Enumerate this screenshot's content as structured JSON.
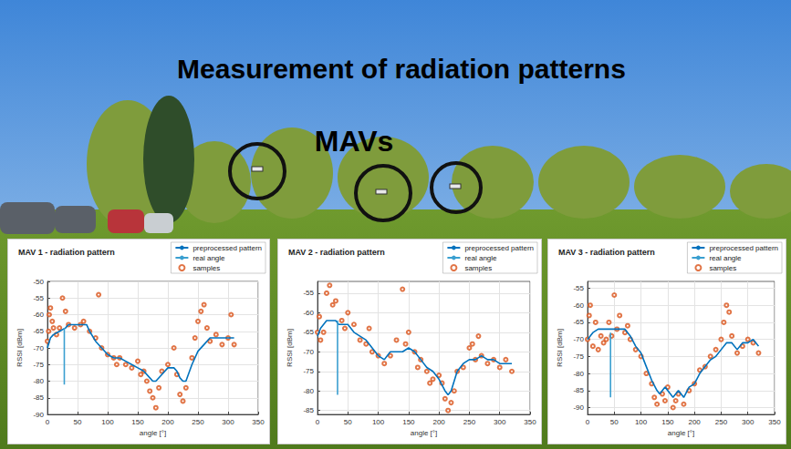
{
  "title": "Measurement of radiation patterns",
  "annotation": "MAVs",
  "chart_data": [
    {
      "type": "line",
      "title": "MAV 1 - radiation pattern",
      "x_label": "angle [°]",
      "y_label": "RSSI [dBm]",
      "xlim": [
        0,
        350
      ],
      "xticks": [
        0,
        50,
        100,
        150,
        200,
        250,
        300,
        350
      ],
      "ylim": [
        -90,
        -50
      ],
      "yticks": [
        -90,
        -85,
        -80,
        -75,
        -70,
        -65,
        -60,
        -55,
        -50
      ],
      "grid": true,
      "legend": "top-right",
      "series": [
        {
          "name": "preprocessed pattern",
          "type": "line",
          "color": "#0072bd",
          "line_style": "solid",
          "x": [
            0,
            5,
            10,
            20,
            30,
            35,
            50,
            65,
            70,
            80,
            90,
            100,
            110,
            120,
            130,
            140,
            150,
            160,
            170,
            175,
            180,
            190,
            200,
            210,
            215,
            220,
            225,
            230,
            240,
            250,
            260,
            270,
            280,
            290,
            300,
            310
          ],
          "values": [
            -70,
            -67,
            -66,
            -65,
            -64,
            -63,
            -63,
            -63,
            -65,
            -68,
            -70,
            -72,
            -73,
            -73,
            -74,
            -75,
            -76,
            -77,
            -79,
            -80,
            -80,
            -78,
            -76,
            -76,
            -77,
            -79,
            -80,
            -80,
            -75,
            -71,
            -69,
            -67,
            -67,
            -67,
            -67,
            -67
          ]
        },
        {
          "name": "real angle",
          "type": "line",
          "color": "#3a9fd0",
          "line_style": "solid",
          "x": [
            28,
            28
          ],
          "values": [
            -81,
            -64
          ]
        },
        {
          "name": "samples",
          "type": "scatter",
          "color": "#d95319",
          "marker": "circle",
          "x": [
            0,
            2,
            3,
            5,
            8,
            10,
            15,
            20,
            25,
            30,
            35,
            45,
            55,
            60,
            70,
            80,
            85,
            90,
            100,
            110,
            115,
            120,
            130,
            140,
            150,
            155,
            160,
            165,
            170,
            175,
            180,
            185,
            190,
            200,
            210,
            215,
            220,
            225,
            230,
            240,
            245,
            250,
            255,
            260,
            265,
            270,
            280,
            290,
            300,
            305,
            310
          ],
          "values": [
            -68,
            -65,
            -60,
            -58,
            -62,
            -64,
            -66,
            -64,
            -55,
            -59,
            -63,
            -64,
            -63,
            -62,
            -65,
            -67,
            -54,
            -70,
            -72,
            -73,
            -75,
            -73,
            -75,
            -76,
            -74,
            -78,
            -77,
            -80,
            -83,
            -85,
            -88,
            -82,
            -77,
            -75,
            -70,
            -78,
            -84,
            -86,
            -82,
            -73,
            -67,
            -62,
            -59,
            -57,
            -64,
            -68,
            -66,
            -69,
            -67,
            -60,
            -69
          ]
        }
      ]
    },
    {
      "type": "line",
      "title": "MAV 2 - radiation pattern",
      "x_label": "angle [°]",
      "y_label": "RSSI [dBm]",
      "xlim": [
        0,
        350
      ],
      "xticks": [
        0,
        50,
        100,
        150,
        200,
        250,
        300,
        350
      ],
      "ylim": [
        -86,
        -52
      ],
      "yticks": [
        -85,
        -80,
        -75,
        -70,
        -65,
        -60,
        -55
      ],
      "grid": true,
      "legend": "top-right",
      "series": [
        {
          "name": "preprocessed pattern",
          "type": "line",
          "color": "#0072bd",
          "line_style": "solid",
          "x": [
            0,
            5,
            10,
            15,
            30,
            35,
            50,
            60,
            70,
            80,
            90,
            100,
            110,
            115,
            120,
            130,
            140,
            150,
            160,
            170,
            180,
            190,
            200,
            210,
            215,
            220,
            230,
            240,
            250,
            260,
            270,
            280,
            290,
            300,
            310,
            320
          ],
          "values": [
            -66,
            -64,
            -63,
            -62,
            -62,
            -63,
            -63,
            -65,
            -66,
            -67,
            -69,
            -71,
            -72,
            -71,
            -70,
            -70,
            -70,
            -69,
            -70,
            -72,
            -74,
            -75,
            -77,
            -80,
            -81,
            -80,
            -75,
            -73,
            -72,
            -72,
            -71,
            -72,
            -72,
            -73,
            -73,
            -73
          ]
        },
        {
          "name": "real angle",
          "type": "line",
          "color": "#3a9fd0",
          "line_style": "solid",
          "x": [
            33,
            33
          ],
          "values": [
            -81,
            -62
          ]
        },
        {
          "name": "samples",
          "type": "scatter",
          "color": "#d95319",
          "marker": "circle",
          "x": [
            0,
            3,
            5,
            10,
            15,
            20,
            25,
            30,
            40,
            45,
            50,
            60,
            70,
            80,
            85,
            90,
            100,
            110,
            120,
            130,
            140,
            145,
            150,
            160,
            165,
            170,
            180,
            185,
            190,
            200,
            205,
            210,
            215,
            220,
            225,
            230,
            240,
            250,
            255,
            260,
            265,
            270,
            280,
            290,
            300,
            310,
            320
          ],
          "values": [
            -65,
            -61,
            -67,
            -65,
            -55,
            -53,
            -58,
            -57,
            -62,
            -64,
            -60,
            -63,
            -67,
            -68,
            -64,
            -70,
            -71,
            -73,
            -71,
            -67,
            -54,
            -68,
            -65,
            -70,
            -74,
            -72,
            -75,
            -78,
            -77,
            -76,
            -78,
            -82,
            -85,
            -83,
            -80,
            -75,
            -74,
            -69,
            -68,
            -72,
            -66,
            -71,
            -73,
            -72,
            -74,
            -72,
            -75
          ]
        }
      ]
    },
    {
      "type": "line",
      "title": "MAV 3 - radiation pattern",
      "x_label": "angle [°]",
      "y_label": "RSSI [dBm]",
      "xlim": [
        0,
        350
      ],
      "xticks": [
        0,
        50,
        100,
        150,
        200,
        250,
        300,
        350
      ],
      "ylim": [
        -92,
        -53
      ],
      "yticks": [
        -90,
        -85,
        -80,
        -75,
        -70,
        -65,
        -60,
        -55
      ],
      "grid": true,
      "legend": "top-right",
      "series": [
        {
          "name": "preprocessed pattern",
          "type": "line",
          "color": "#0072bd",
          "line_style": "solid",
          "x": [
            0,
            5,
            10,
            20,
            30,
            40,
            50,
            60,
            70,
            80,
            90,
            100,
            110,
            120,
            130,
            135,
            140,
            145,
            150,
            160,
            165,
            170,
            180,
            190,
            200,
            210,
            220,
            230,
            240,
            250,
            260,
            270,
            280,
            290,
            300,
            310,
            320
          ],
          "values": [
            -70,
            -69,
            -68,
            -67,
            -67,
            -67,
            -67,
            -67,
            -67,
            -69,
            -72,
            -74,
            -78,
            -82,
            -85,
            -86,
            -85,
            -84,
            -85,
            -87,
            -86,
            -85,
            -87,
            -84,
            -83,
            -80,
            -78,
            -76,
            -75,
            -73,
            -71,
            -71,
            -73,
            -71,
            -71,
            -70,
            -72
          ]
        },
        {
          "name": "real angle",
          "type": "line",
          "color": "#3a9fd0",
          "line_style": "solid",
          "x": [
            43,
            43
          ],
          "values": [
            -87,
            -68
          ]
        },
        {
          "name": "samples",
          "type": "scatter",
          "color": "#d95319",
          "marker": "circle",
          "x": [
            0,
            3,
            5,
            10,
            15,
            20,
            25,
            30,
            35,
            40,
            45,
            50,
            55,
            60,
            70,
            75,
            80,
            90,
            100,
            110,
            120,
            125,
            130,
            140,
            145,
            150,
            160,
            165,
            170,
            180,
            190,
            200,
            210,
            220,
            230,
            240,
            250,
            255,
            260,
            265,
            270,
            280,
            290,
            300,
            310,
            320
          ],
          "values": [
            -70,
            -63,
            -60,
            -72,
            -65,
            -73,
            -69,
            -71,
            -70,
            -65,
            -69,
            -57,
            -67,
            -63,
            -68,
            -66,
            -70,
            -73,
            -75,
            -80,
            -83,
            -87,
            -89,
            -86,
            -88,
            -84,
            -90,
            -88,
            -86,
            -89,
            -85,
            -83,
            -79,
            -78,
            -75,
            -73,
            -70,
            -65,
            -60,
            -62,
            -69,
            -74,
            -72,
            -70,
            -71,
            -74
          ]
        }
      ]
    }
  ]
}
